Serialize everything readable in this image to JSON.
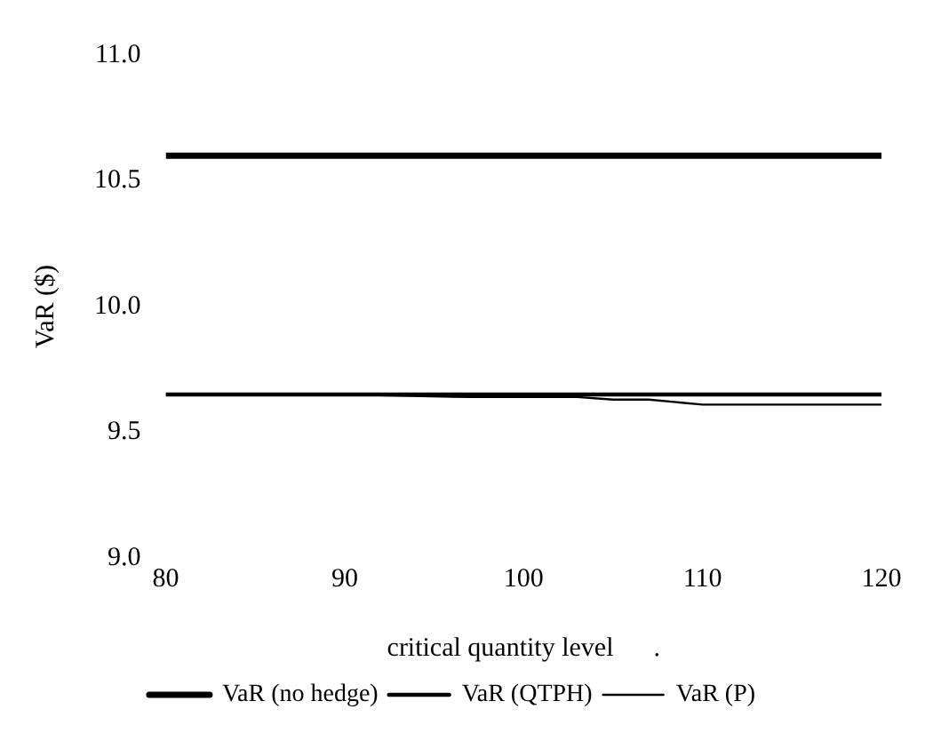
{
  "chart_data": {
    "type": "line",
    "xlabel": "critical quantity level      .",
    "ylabel": "VaR ($)",
    "x": [
      80,
      90,
      97,
      100,
      103,
      105,
      107,
      110,
      115,
      120
    ],
    "series": [
      {
        "name": "VaR (no hedge)",
        "color": "#000000",
        "values": [
          10.6,
          10.6,
          10.6,
          10.6,
          10.6,
          10.6,
          10.6,
          10.6,
          10.6,
          10.6
        ]
      },
      {
        "name": "VaR (QTPH)",
        "color": "#000000",
        "values": [
          9.65,
          9.65,
          9.65,
          9.65,
          9.65,
          9.65,
          9.65,
          9.65,
          9.65,
          9.65
        ]
      },
      {
        "name": "VaR (P)",
        "color": "#000000",
        "values": [
          9.65,
          9.65,
          9.64,
          9.64,
          9.64,
          9.63,
          9.63,
          9.61,
          9.61,
          9.61
        ]
      }
    ],
    "xlim": [
      80,
      120
    ],
    "xticks": [
      80,
      90,
      100,
      110,
      120
    ],
    "ylim": [
      9.0,
      11.0
    ],
    "yticks": [
      {
        "value": 9,
        "label": "9.0"
      },
      9.5,
      {
        "value": 10,
        "label": "10.0"
      },
      10.5,
      {
        "value": 11,
        "label": "11.0"
      }
    ],
    "grid": false,
    "legend": "bottom",
    "marker": "none",
    "line_style": "solid"
  }
}
